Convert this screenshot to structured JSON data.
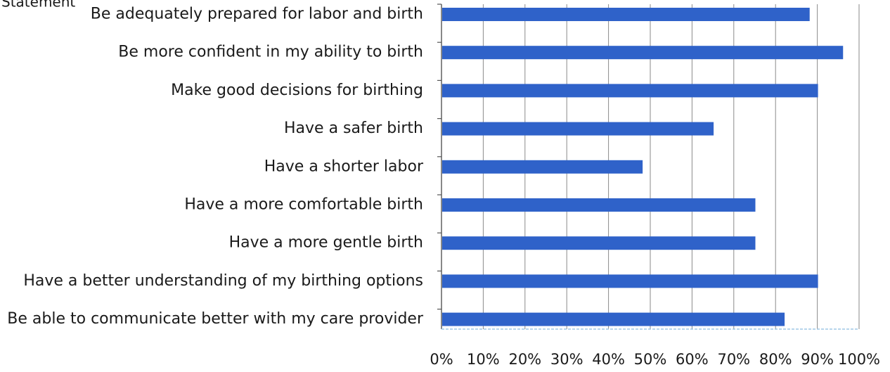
{
  "chart_data": {
    "type": "bar",
    "orientation": "horizontal",
    "title": "Statement",
    "categories": [
      "Be adequately prepared for labor and birth",
      "Be more confident in my ability to birth",
      "Make good decisions for birthing",
      "Have a safer birth",
      "Have a shorter labor",
      "Have a more comfortable birth",
      "Have a more gentle birth",
      "Have a better understanding of my birthing options",
      "Be able to communicate better with my care provider"
    ],
    "values": [
      88,
      96,
      90,
      65,
      48,
      75,
      75,
      90,
      82
    ],
    "xlim": [
      0,
      100
    ],
    "x_ticks": [
      "0%",
      "10%",
      "20%",
      "30%",
      "40%",
      "50%",
      "60%",
      "70%",
      "80%",
      "90%",
      "100%"
    ],
    "grid": true,
    "legend": "none",
    "bar_color": "#2f62c9"
  }
}
